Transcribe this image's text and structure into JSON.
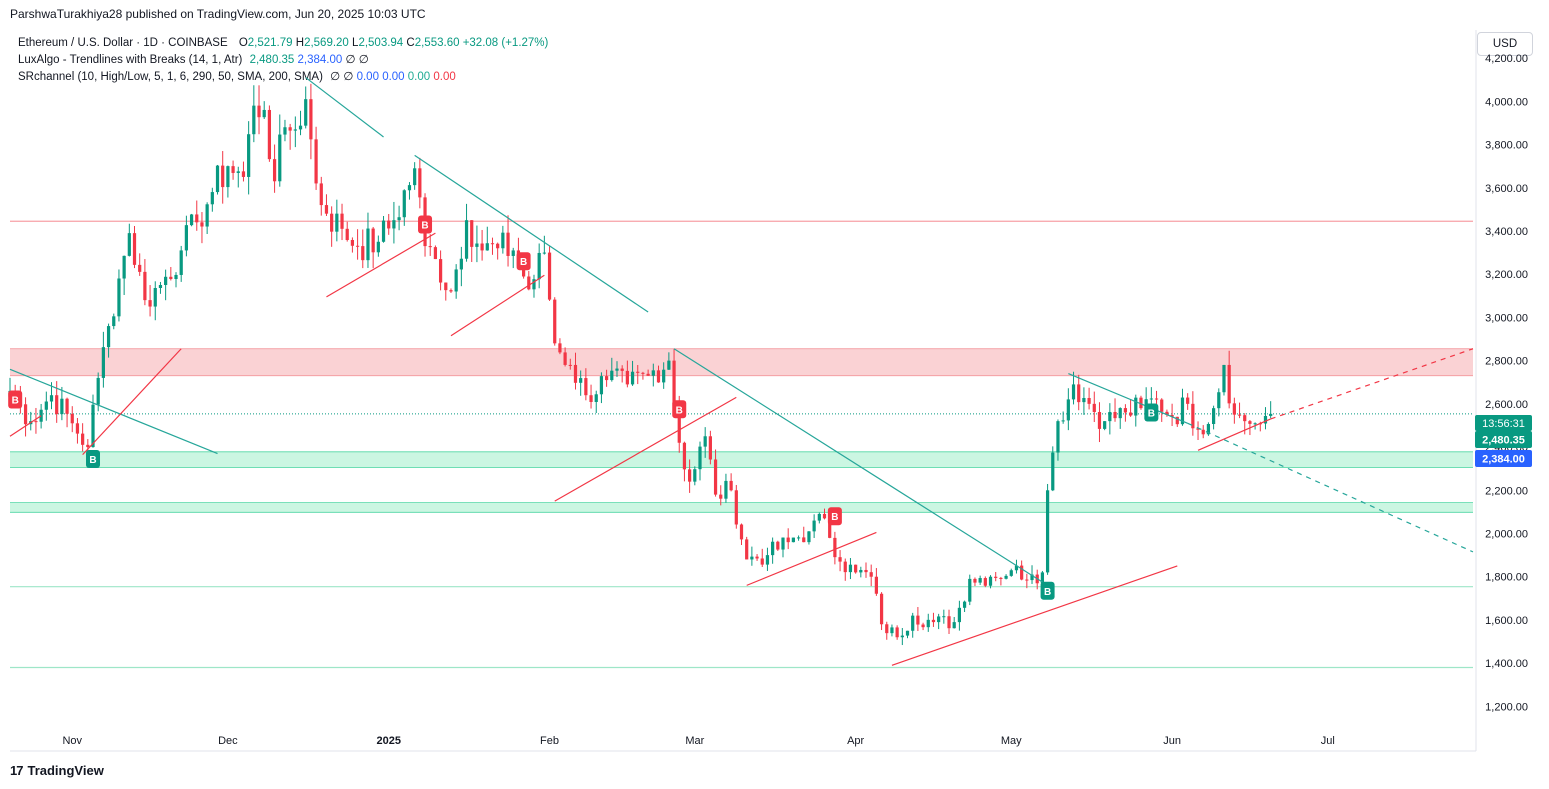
{
  "header": {
    "publisher": "ParshwaTurakhiya28 published on TradingView.com, Jun 20, 2025 10:03 UTC"
  },
  "legend": {
    "symbol": "Ethereum / U.S. Dollar · 1D · COINBASE",
    "open_label": "O",
    "open": "2,521.79",
    "high_label": "H",
    "high": "2,569.20",
    "low_label": "L",
    "low": "2,503.94",
    "close_label": "C",
    "close": "2,553.60",
    "change": "+32.08 (+1.27%)",
    "indicator1_name": "LuxAlgo - Trendlines with Breaks (14, 1, Atr)",
    "indicator1_v1": "2,480.35",
    "indicator1_v2": "2,384.00",
    "indicator1_v3": "∅",
    "indicator1_v4": "∅",
    "indicator2_name": "SRchannel (10, High/Low, 5, 1, 6, 290, 50, SMA, 200, SMA)",
    "indicator2_v1": "∅",
    "indicator2_v2": "∅",
    "indicator2_v3": "0.00",
    "indicator2_v4": "0.00",
    "indicator2_v5": "0.00",
    "indicator2_v6": "0.00"
  },
  "toolbar": {
    "currency": "USD"
  },
  "footer": {
    "brand": "TradingView",
    "logo_icon": "tradingview-logo-icon"
  },
  "price_labels": {
    "countdown": "13:56:31",
    "trend_value": "2,480.35",
    "support_value": "2,384.00"
  },
  "colors": {
    "up": "#089981",
    "down": "#f23645",
    "trend_down": "#26a69a",
    "trend_up": "#f23645",
    "resistance_zone": "#f7b4b7",
    "support_zone": "#a8f0cf",
    "break_label": "#f23645",
    "break_label_up": "#089981"
  },
  "chart_data": {
    "type": "candlestick",
    "symbol": "ETH/USD",
    "interval": "1D",
    "ylim": [
      1100,
      4330
    ],
    "y_ticks": [
      1200,
      1400,
      1600,
      1800,
      2000,
      2200,
      2400,
      2600,
      2800,
      3000,
      3200,
      3400,
      3600,
      3800,
      4000,
      4200
    ],
    "y_tick_labels": [
      "1,200.00",
      "1,400.00",
      "1,600.00",
      "1,800.00",
      "2,000.00",
      "2,200.00",
      "2,400.00",
      "2,600.00",
      "2,800.00",
      "3,000.00",
      "3,200.00",
      "3,400.00",
      "3,600.00",
      "3,800.00",
      "4,000.00",
      "4,200.00"
    ],
    "x_range": [
      "2024-10-20",
      "2025-07-29"
    ],
    "x_ticks": [
      {
        "date": "2024-11-01",
        "label": "Nov"
      },
      {
        "date": "2024-12-01",
        "label": "Dec"
      },
      {
        "date": "2025-01-01",
        "label": "2025"
      },
      {
        "date": "2025-02-01",
        "label": "Feb"
      },
      {
        "date": "2025-03-01",
        "label": "Mar"
      },
      {
        "date": "2025-04-01",
        "label": "Apr"
      },
      {
        "date": "2025-05-01",
        "label": "May"
      },
      {
        "date": "2025-06-01",
        "label": "Jun"
      },
      {
        "date": "2025-07-01",
        "label": "Jul"
      }
    ],
    "close_anchors": [
      [
        "2024-10-20",
        2660
      ],
      [
        "2024-10-24",
        2520
      ],
      [
        "2024-10-28",
        2640
      ],
      [
        "2024-11-01",
        2510
      ],
      [
        "2024-11-04",
        2400
      ],
      [
        "2024-11-06",
        2720
      ],
      [
        "2024-11-08",
        2960
      ],
      [
        "2024-11-10",
        3180
      ],
      [
        "2024-11-12",
        3390
      ],
      [
        "2024-11-15",
        3080
      ],
      [
        "2024-11-18",
        3150
      ],
      [
        "2024-11-22",
        3310
      ],
      [
        "2024-11-25",
        3440
      ],
      [
        "2024-11-28",
        3580
      ],
      [
        "2024-12-01",
        3700
      ],
      [
        "2024-12-04",
        3650
      ],
      [
        "2024-12-06",
        3980
      ],
      [
        "2024-12-08",
        3960
      ],
      [
        "2024-12-10",
        3630
      ],
      [
        "2024-12-12",
        3880
      ],
      [
        "2024-12-14",
        3870
      ],
      [
        "2024-12-16",
        4010
      ],
      [
        "2024-12-18",
        3620
      ],
      [
        "2024-12-20",
        3480
      ],
      [
        "2024-12-23",
        3410
      ],
      [
        "2024-12-26",
        3330
      ],
      [
        "2024-12-30",
        3350
      ],
      [
        "2025-01-02",
        3450
      ],
      [
        "2025-01-06",
        3690
      ],
      [
        "2025-01-08",
        3330
      ],
      [
        "2025-01-10",
        3270
      ],
      [
        "2025-01-13",
        3120
      ],
      [
        "2025-01-16",
        3450
      ],
      [
        "2025-01-19",
        3310
      ],
      [
        "2025-01-22",
        3320
      ],
      [
        "2025-01-25",
        3310
      ],
      [
        "2025-01-28",
        3130
      ],
      [
        "2025-01-31",
        3300
      ],
      [
        "2025-02-02",
        2880
      ],
      [
        "2025-02-05",
        2780
      ],
      [
        "2025-02-08",
        2640
      ],
      [
        "2025-02-12",
        2710
      ],
      [
        "2025-02-16",
        2690
      ],
      [
        "2025-02-20",
        2730
      ],
      [
        "2025-02-24",
        2800
      ],
      [
        "2025-02-26",
        2420
      ],
      [
        "2025-02-28",
        2240
      ],
      [
        "2025-03-03",
        2450
      ],
      [
        "2025-03-05",
        2180
      ],
      [
        "2025-03-08",
        2200
      ],
      [
        "2025-03-11",
        1880
      ],
      [
        "2025-03-15",
        1900
      ],
      [
        "2025-03-19",
        1960
      ],
      [
        "2025-03-23",
        2010
      ],
      [
        "2025-03-26",
        2070
      ],
      [
        "2025-03-29",
        1870
      ],
      [
        "2025-04-01",
        1820
      ],
      [
        "2025-04-04",
        1800
      ],
      [
        "2025-04-06",
        1580
      ],
      [
        "2025-04-09",
        1520
      ],
      [
        "2025-04-12",
        1620
      ],
      [
        "2025-04-16",
        1590
      ],
      [
        "2025-04-20",
        1590
      ],
      [
        "2025-04-23",
        1790
      ],
      [
        "2025-04-27",
        1800
      ],
      [
        "2025-05-01",
        1830
      ],
      [
        "2025-05-05",
        1810
      ],
      [
        "2025-05-07",
        1820
      ],
      [
        "2025-05-08",
        2200
      ],
      [
        "2025-05-10",
        2520
      ],
      [
        "2025-05-13",
        2690
      ],
      [
        "2025-05-16",
        2600
      ],
      [
        "2025-05-19",
        2520
      ],
      [
        "2025-05-23",
        2560
      ],
      [
        "2025-05-26",
        2580
      ],
      [
        "2025-05-29",
        2620
      ],
      [
        "2025-06-01",
        2540
      ],
      [
        "2025-06-04",
        2600
      ],
      [
        "2025-06-06",
        2480
      ],
      [
        "2025-06-09",
        2580
      ],
      [
        "2025-06-11",
        2780
      ],
      [
        "2025-06-13",
        2550
      ],
      [
        "2025-06-15",
        2520
      ],
      [
        "2025-06-17",
        2510
      ],
      [
        "2025-06-20",
        2553.6
      ]
    ],
    "zones": [
      {
        "type": "resistance",
        "low": 2730,
        "high": 2855
      },
      {
        "type": "support",
        "low": 2305,
        "high": 2378
      },
      {
        "type": "support",
        "low": 2098,
        "high": 2143
      }
    ],
    "levels": [
      {
        "type": "resistance",
        "value": 3445
      },
      {
        "type": "support",
        "value": 1754
      },
      {
        "type": "support",
        "value": 1380
      }
    ],
    "trendlines": [
      {
        "kind": "down",
        "from": [
          "2024-10-20",
          2760
        ],
        "to": [
          "2024-11-29",
          2370
        ]
      },
      {
        "kind": "down",
        "from": [
          "2024-12-16",
          4110
        ],
        "to": [
          "2024-12-31",
          3835
        ]
      },
      {
        "kind": "down",
        "from": [
          "2025-01-06",
          3750
        ],
        "to": [
          "2025-02-20",
          3025
        ]
      },
      {
        "kind": "down",
        "from": [
          "2025-02-25",
          2855
        ],
        "to": [
          "2025-05-09",
          1745
        ]
      },
      {
        "kind": "down",
        "from": [
          "2025-05-12",
          2740
        ],
        "to": [
          "2025-06-04",
          2510
        ]
      },
      {
        "kind": "down",
        "dashed": true,
        "from": [
          "2025-06-04",
          2510
        ],
        "to": [
          "2025-07-29",
          1915
        ]
      },
      {
        "kind": "up",
        "from": [
          "2024-10-20",
          2450
        ],
        "to": [
          "2024-10-26",
          2545
        ]
      },
      {
        "kind": "up",
        "from": [
          "2024-11-03",
          2365
        ],
        "to": [
          "2024-11-22",
          2855
        ]
      },
      {
        "kind": "up",
        "from": [
          "2024-12-20",
          3095
        ],
        "to": [
          "2025-01-10",
          3390
        ]
      },
      {
        "kind": "up",
        "from": [
          "2025-01-13",
          2915
        ],
        "to": [
          "2025-01-31",
          3195
        ]
      },
      {
        "kind": "up",
        "from": [
          "2025-02-02",
          2150
        ],
        "to": [
          "2025-03-09",
          2630
        ]
      },
      {
        "kind": "up",
        "from": [
          "2025-03-11",
          1760
        ],
        "to": [
          "2025-04-05",
          2005
        ]
      },
      {
        "kind": "up",
        "from": [
          "2025-04-08",
          1390
        ],
        "to": [
          "2025-06-02",
          1850
        ]
      },
      {
        "kind": "up",
        "from": [
          "2025-06-06",
          2385
        ],
        "to": [
          "2025-06-20",
          2530
        ]
      },
      {
        "kind": "up",
        "dashed": true,
        "from": [
          "2025-06-20",
          2530
        ],
        "to": [
          "2025-07-29",
          2855
        ]
      }
    ],
    "break_signals": [
      {
        "date": "2024-10-21",
        "price": 2620,
        "kind": "bearish",
        "text": "B"
      },
      {
        "date": "2024-11-05",
        "price": 2345,
        "kind": "bullish",
        "text": "B"
      },
      {
        "date": "2025-01-08",
        "price": 3430,
        "kind": "bearish",
        "text": "B"
      },
      {
        "date": "2025-01-27",
        "price": 3260,
        "kind": "bearish",
        "text": "B"
      },
      {
        "date": "2025-02-26",
        "price": 2575,
        "kind": "bearish",
        "text": "B"
      },
      {
        "date": "2025-03-28",
        "price": 2080,
        "kind": "bearish",
        "text": "B"
      },
      {
        "date": "2025-05-08",
        "price": 1735,
        "kind": "bullish",
        "text": "B"
      },
      {
        "date": "2025-05-28",
        "price": 2560,
        "kind": "bullish",
        "text": "B"
      }
    ],
    "last_close_line": 2553.6
  }
}
